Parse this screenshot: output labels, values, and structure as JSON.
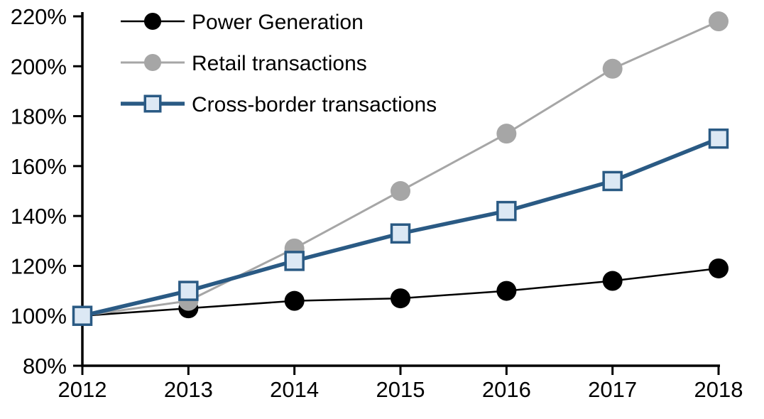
{
  "chart_data": {
    "type": "line",
    "title": "",
    "xlabel": "",
    "ylabel": "",
    "grid": false,
    "background": "#ffffff",
    "axis_color": "#000000",
    "categories": [
      "2012",
      "2013",
      "2014",
      "2015",
      "2016",
      "2017",
      "2018"
    ],
    "y_axis": {
      "min": 80,
      "max": 220,
      "step": 20,
      "unit": "%",
      "ticks": [
        "80%",
        "100%",
        "120%",
        "140%",
        "160%",
        "180%",
        "200%",
        "220%"
      ]
    },
    "ylim": [
      80,
      220
    ],
    "legend_position": "top-left",
    "series": [
      {
        "name": "Power Generation",
        "color": "#000000",
        "marker": "circle",
        "marker_fill": "#000000",
        "line_width": 2.5,
        "values": [
          100,
          103,
          106,
          107,
          110,
          114,
          119
        ]
      },
      {
        "name": "Retail transactions",
        "color": "#A6A6A6",
        "marker": "circle",
        "marker_fill": "#A6A6A6",
        "line_width": 3,
        "values": [
          100,
          106,
          127,
          150,
          173,
          199,
          218
        ]
      },
      {
        "name": "Cross-border transactions",
        "color": "#2A5A84",
        "marker": "square",
        "marker_fill": "#DCE8F4",
        "line_width": 5.5,
        "values": [
          100,
          110,
          122,
          133,
          142,
          154,
          171
        ]
      }
    ]
  }
}
